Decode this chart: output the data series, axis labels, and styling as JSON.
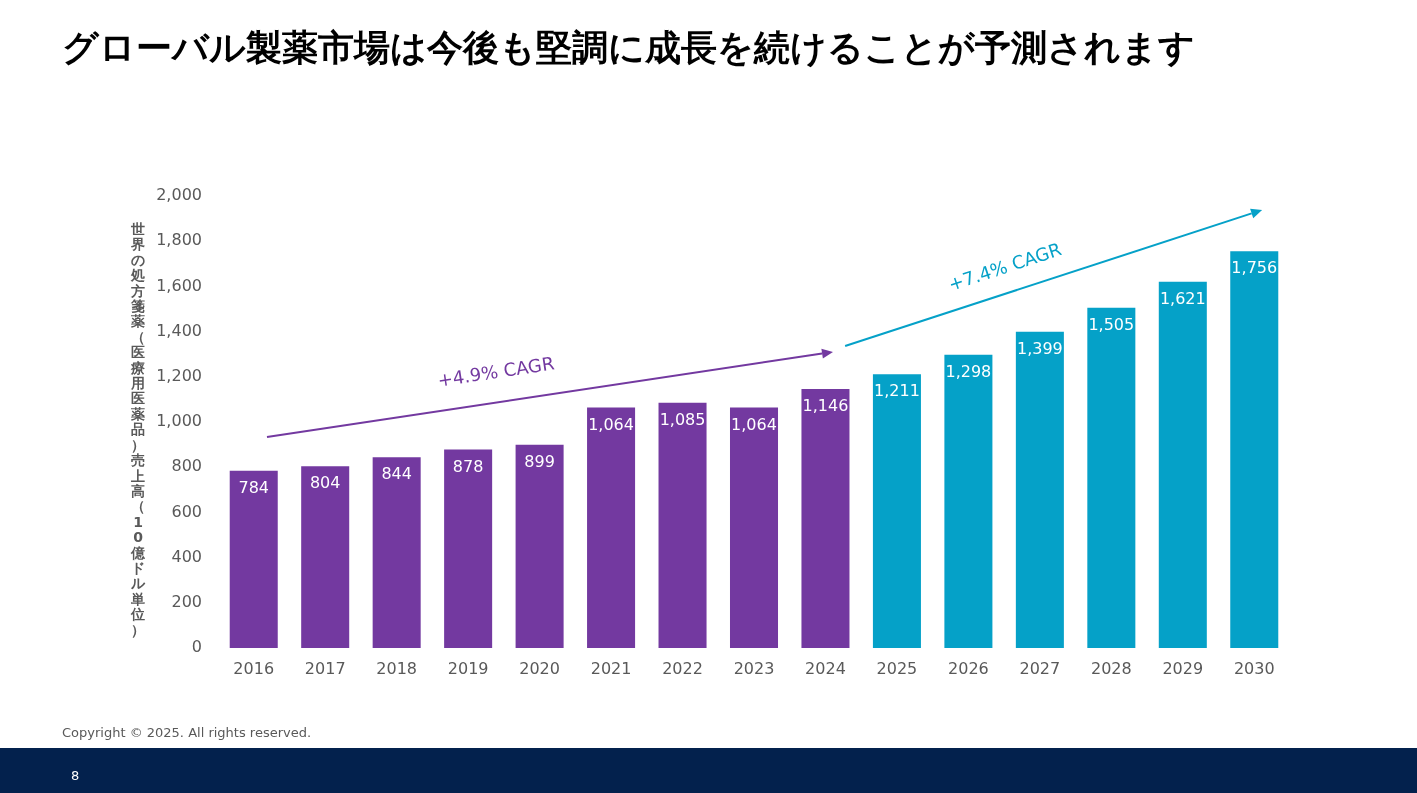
{
  "chart_data": {
    "type": "bar",
    "title": "グローバル製薬市場は今後も堅調に成長を続けることが予測されます",
    "ylabel": "世界の処方箋薬（医療用医薬品）売上高（10億ドル単位）",
    "categories": [
      "2016",
      "2017",
      "2018",
      "2019",
      "2020",
      "2021",
      "2022",
      "2023",
      "2024",
      "2025",
      "2026",
      "2027",
      "2028",
      "2029",
      "2030"
    ],
    "values": [
      784,
      804,
      844,
      878,
      899,
      1064,
      1085,
      1064,
      1146,
      1211,
      1298,
      1399,
      1505,
      1621,
      1756
    ],
    "colors": [
      "#7339a0",
      "#7339a0",
      "#7339a0",
      "#7339a0",
      "#7339a0",
      "#7339a0",
      "#7339a0",
      "#7339a0",
      "#7339a0",
      "#05a1c8",
      "#05a1c8",
      "#05a1c8",
      "#05a1c8",
      "#05a1c8",
      "#05a1c8"
    ],
    "value_labels": [
      "784",
      "804",
      "844",
      "878",
      "899",
      "1,064",
      "1,085",
      "1,064",
      "1,146",
      "1,211",
      "1,298",
      "1,399",
      "1,505",
      "1,621",
      "1,756"
    ],
    "ylim": [
      0,
      2000
    ],
    "yticks": [
      0,
      200,
      400,
      600,
      800,
      {
        "value": 1000,
        "label": "1,000"
      },
      {
        "value": 1200,
        "label": "1,200"
      },
      {
        "value": 1400,
        "label": "1,400"
      },
      {
        "value": 1600,
        "label": "1,600"
      },
      {
        "value": 1800,
        "label": "1,800"
      },
      {
        "value": 2000,
        "label": "2,000"
      }
    ],
    "grid": false,
    "legend": false,
    "annotations": [
      "+4.9% CAGR",
      "+7.4% CAGR",
      "Copyright © 2025. All rights reserved.",
      "8"
    ]
  }
}
